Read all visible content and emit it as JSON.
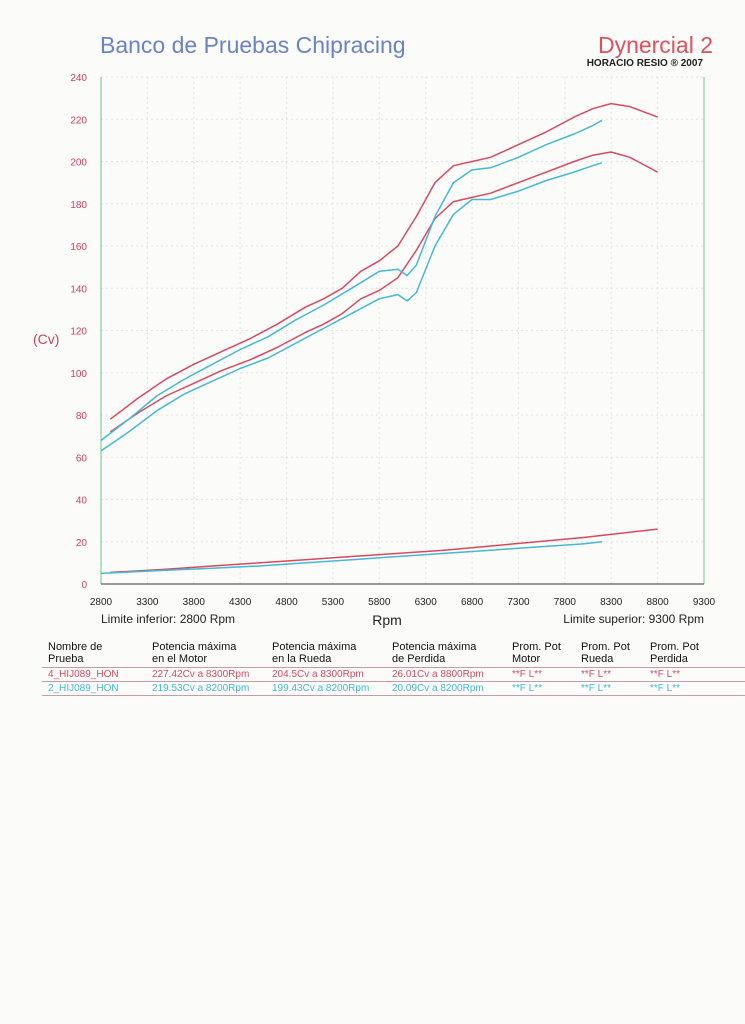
{
  "header": {
    "title": "Banco de Pruebas Chipracing",
    "brand": "Dynercial 2",
    "brand_sub": "HORACIO RESIO ® 2007"
  },
  "limits": {
    "lower": "Limite inferior:  2800 Rpm",
    "upper": "Limite superior:  9300 Rpm"
  },
  "table": {
    "headers": [
      [
        "Nombre de",
        "Prueba"
      ],
      [
        "Potencia máxima",
        "en el Motor"
      ],
      [
        "Potencia máxima",
        "en la Rueda"
      ],
      [
        "Potencia máxima",
        "de Perdida"
      ],
      [
        "Prom. Pot",
        "Motor"
      ],
      [
        "Prom. Pot",
        "Rueda"
      ],
      [
        "Prom. Pot",
        "Perdida"
      ]
    ],
    "rows": [
      [
        "4_HIJ089_HON",
        "227.42Cv a  8300Rpm",
        "204.5Cv a  8300Rpm",
        "26.01Cv a  8800Rpm",
        "**F L**",
        "**F L**",
        "**F L**"
      ],
      [
        "2_HIJ089_HON",
        "219.53Cv a  8200Rpm",
        "199.43Cv a  8200Rpm",
        "20.09Cv a  8200Rpm",
        "**F L**",
        "**F L**",
        "**F L**"
      ]
    ]
  },
  "chart_data": {
    "type": "line",
    "title": "Banco de Pruebas Chipracing",
    "xlabel": "Rpm",
    "ylabel": "(Cv)",
    "xlim": [
      2800,
      9300
    ],
    "ylim": [
      0,
      240
    ],
    "xticks": [
      2800,
      3300,
      3800,
      4300,
      4800,
      5300,
      5800,
      6300,
      6800,
      7300,
      7800,
      8300,
      8800,
      9300
    ],
    "yticks": [
      0,
      20,
      40,
      60,
      80,
      100,
      120,
      140,
      160,
      180,
      200,
      220,
      240
    ],
    "grid": true,
    "series": [
      {
        "name": "4_HIJ089_HON Motor",
        "color": "#d84a62",
        "x": [
          2900,
          3200,
          3500,
          3800,
          4100,
          4400,
          4700,
          5000,
          5200,
          5400,
          5600,
          5800,
          6000,
          6200,
          6400,
          6600,
          6800,
          7000,
          7300,
          7600,
          7900,
          8100,
          8300,
          8500,
          8800
        ],
        "y": [
          78,
          88,
          97,
          104,
          110,
          116,
          123,
          131,
          135,
          140,
          148,
          153,
          160,
          174,
          190,
          198,
          200,
          202,
          208,
          214,
          221,
          225,
          227.4,
          226,
          221
        ]
      },
      {
        "name": "4_HIJ089_HON Rueda",
        "color": "#d84a62",
        "x": [
          2900,
          3200,
          3500,
          3800,
          4100,
          4400,
          4700,
          5000,
          5200,
          5400,
          5600,
          5800,
          6000,
          6200,
          6400,
          6600,
          6800,
          7000,
          7300,
          7600,
          7900,
          8100,
          8300,
          8500,
          8800
        ],
        "y": [
          72,
          81,
          89,
          95,
          101,
          106,
          112,
          119,
          123,
          128,
          135,
          139,
          145,
          158,
          173,
          181,
          183,
          185,
          190,
          195,
          200,
          203,
          204.5,
          202,
          195
        ]
      },
      {
        "name": "4_HIJ089_HON Perdida",
        "color": "#d84a62",
        "x": [
          2900,
          3500,
          4000,
          4500,
          5000,
          5500,
          6000,
          6500,
          7000,
          7500,
          8000,
          8500,
          8800
        ],
        "y": [
          5.5,
          7,
          8.5,
          10,
          11.5,
          13,
          14.5,
          16,
          18,
          20,
          22,
          24.5,
          26
        ]
      },
      {
        "name": "2_HIJ089_HON Motor",
        "color": "#45b8d8",
        "x": [
          2800,
          3100,
          3400,
          3700,
          4000,
          4300,
          4600,
          4900,
          5200,
          5500,
          5800,
          6000,
          6100,
          6200,
          6400,
          6600,
          6800,
          7000,
          7300,
          7600,
          7900,
          8100,
          8200
        ],
        "y": [
          68,
          78,
          89,
          97,
          104,
          111,
          117,
          125,
          132,
          140,
          148,
          149,
          146,
          151,
          174,
          190,
          196,
          197,
          202,
          208,
          213,
          217,
          219.5
        ]
      },
      {
        "name": "2_HIJ089_HON Rueda",
        "color": "#45b8d8",
        "x": [
          2800,
          3100,
          3400,
          3700,
          4000,
          4300,
          4600,
          4900,
          5200,
          5500,
          5800,
          6000,
          6100,
          6200,
          6400,
          6600,
          6800,
          7000,
          7300,
          7600,
          7900,
          8100,
          8200
        ],
        "y": [
          63,
          72,
          82,
          90,
          96,
          102,
          107,
          114,
          121,
          128,
          135,
          137,
          134,
          138,
          160,
          175,
          182,
          182,
          186,
          191,
          195,
          198,
          199.4
        ]
      },
      {
        "name": "2_HIJ089_HON Perdida",
        "color": "#45b8d8",
        "x": [
          2800,
          3500,
          4000,
          4500,
          5000,
          5500,
          6000,
          6500,
          7000,
          7500,
          8000,
          8200
        ],
        "y": [
          5,
          6.5,
          7.5,
          8.5,
          10,
          11.5,
          13,
          14.5,
          16,
          17.5,
          19,
          20
        ]
      }
    ]
  }
}
